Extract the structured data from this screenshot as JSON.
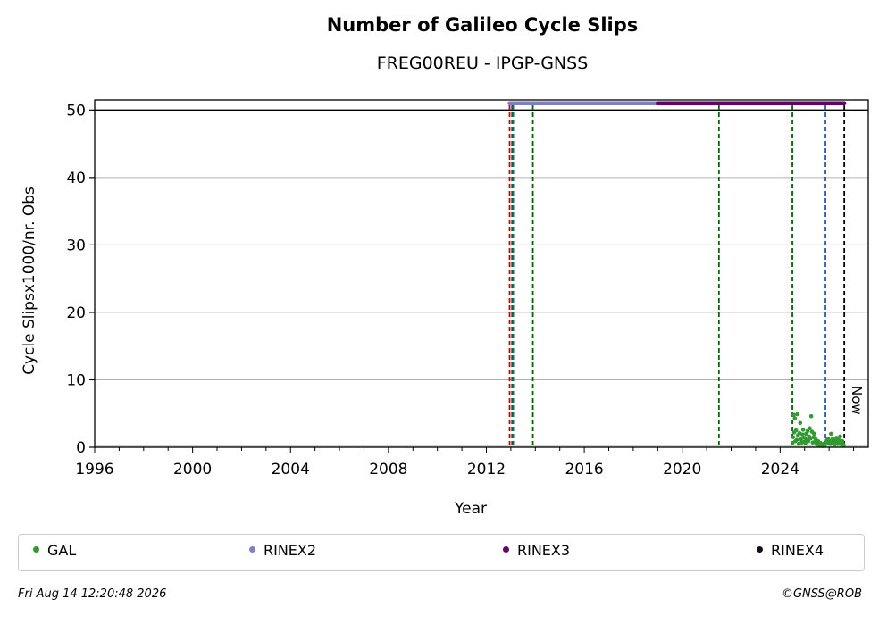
{
  "chart_data": {
    "type": "scatter",
    "title": "Number of Galileo Cycle Slips",
    "subtitle": "FREG00REU - IPGP-GNSS",
    "xlabel": "Year",
    "ylabel": "Cycle Slipsx1000/nr. Obs",
    "xlim": [
      1996,
      2027.6
    ],
    "ylim": [
      0,
      51.5
    ],
    "x_ticks": [
      1996,
      2000,
      2004,
      2008,
      2012,
      2016,
      2020,
      2024
    ],
    "y_ticks": [
      0,
      10,
      20,
      30,
      40,
      50
    ],
    "grid": "horizontal",
    "reference_line_y": 50,
    "vertical_lines": [
      {
        "x": 2012.95,
        "color": "#cc0000"
      },
      {
        "x": 2013.05,
        "color": "#006600"
      },
      {
        "x": 2013.1,
        "color": "#1f5fa8"
      },
      {
        "x": 2013.9,
        "color": "#006600"
      },
      {
        "x": 2021.5,
        "color": "#006600"
      },
      {
        "x": 2024.5,
        "color": "#006600"
      },
      {
        "x": 2025.85,
        "color": "#1f5fa8"
      },
      {
        "x": 2026.62,
        "color": "#000000"
      }
    ],
    "now_label": "Now",
    "rinex_bars": [
      {
        "name": "RINEX2",
        "start": 2012.95,
        "end": 2019.0,
        "y": 51,
        "color": "#8080c0"
      },
      {
        "name": "RINEX3",
        "start": 2019.0,
        "end": 2026.62,
        "y": 51,
        "color": "#660066"
      }
    ],
    "series": [
      {
        "name": "GAL",
        "color": "#339933",
        "points": [
          [
            2024.5,
            0.6
          ],
          [
            2024.53,
            1.5
          ],
          [
            2024.55,
            4.8
          ],
          [
            2024.57,
            2.2
          ],
          [
            2024.6,
            4.3
          ],
          [
            2024.62,
            0.9
          ],
          [
            2024.65,
            2.5
          ],
          [
            2024.68,
            1.1
          ],
          [
            2024.7,
            4.9
          ],
          [
            2024.73,
            1.8
          ],
          [
            2024.76,
            0.5
          ],
          [
            2024.79,
            2.1
          ],
          [
            2024.82,
            3.6
          ],
          [
            2024.85,
            1.2
          ],
          [
            2024.88,
            0.7
          ],
          [
            2024.91,
            1.9
          ],
          [
            2024.94,
            2.6
          ],
          [
            2024.97,
            0.8
          ],
          [
            2025.0,
            1.4
          ],
          [
            2025.03,
            0.6
          ],
          [
            2025.06,
            2.0
          ],
          [
            2025.09,
            1.1
          ],
          [
            2025.12,
            2.4
          ],
          [
            2025.15,
            0.9
          ],
          [
            2025.18,
            1.6
          ],
          [
            2025.21,
            2.8
          ],
          [
            2025.24,
            1.3
          ],
          [
            2025.27,
            4.6
          ],
          [
            2025.3,
            2.3
          ],
          [
            2025.33,
            0.7
          ],
          [
            2025.36,
            1.5
          ],
          [
            2025.39,
            2.0
          ],
          [
            2025.42,
            0.8
          ],
          [
            2025.45,
            1.2
          ],
          [
            2025.48,
            0.6
          ],
          [
            2025.51,
            0.4
          ],
          [
            2025.55,
            0.9
          ],
          [
            2025.58,
            0.5
          ],
          [
            2025.62,
            0.3
          ],
          [
            2025.66,
            0.6
          ],
          [
            2025.7,
            0.4
          ],
          [
            2025.74,
            0.2
          ],
          [
            2025.78,
            0.5
          ],
          [
            2025.82,
            0.3
          ],
          [
            2025.9,
            1.0
          ],
          [
            2025.93,
            0.7
          ],
          [
            2025.96,
            1.3
          ],
          [
            2025.99,
            0.6
          ],
          [
            2026.02,
            0.9
          ],
          [
            2026.05,
            0.5
          ],
          [
            2026.08,
            2.0
          ],
          [
            2026.11,
            0.8
          ],
          [
            2026.14,
            1.2
          ],
          [
            2026.17,
            0.6
          ],
          [
            2026.2,
            1.0
          ],
          [
            2026.23,
            0.4
          ],
          [
            2026.26,
            0.9
          ],
          [
            2026.3,
            1.4
          ],
          [
            2026.33,
            0.7
          ],
          [
            2026.36,
            0.5
          ],
          [
            2026.39,
            1.1
          ],
          [
            2026.42,
            0.8
          ],
          [
            2026.45,
            1.6
          ],
          [
            2026.48,
            0.6
          ],
          [
            2026.51,
            0.4
          ],
          [
            2026.54,
            0.9
          ],
          [
            2026.57,
            0.5
          ],
          [
            2026.6,
            0.3
          ]
        ]
      }
    ],
    "legend": [
      "GAL",
      "RINEX2",
      "RINEX3",
      "RINEX4"
    ],
    "legend_colors": [
      "#339933",
      "#8080c0",
      "#660066",
      "#1a0a1a"
    ],
    "legend_placement": "bottom"
  },
  "footer": {
    "timestamp": "Fri Aug 14 12:20:48 2026",
    "credit": "©GNSS@ROB"
  }
}
